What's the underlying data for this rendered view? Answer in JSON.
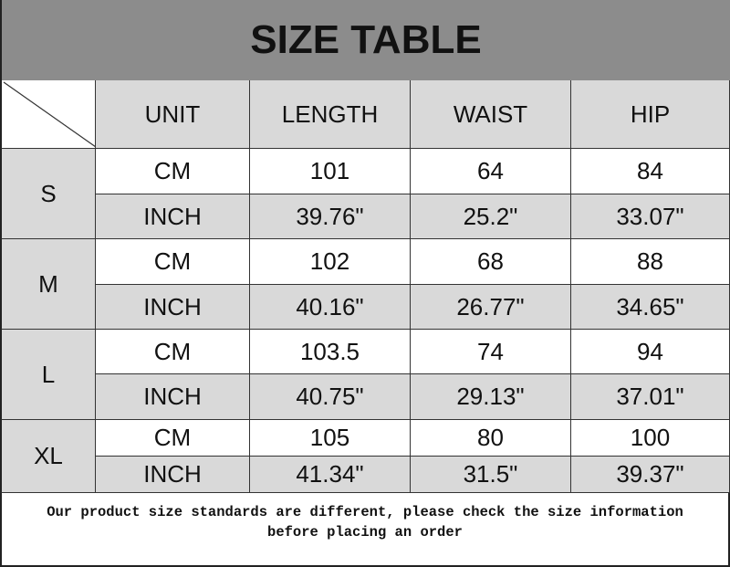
{
  "title": "SIZE TABLE",
  "headers": [
    "UNIT",
    "LENGTH",
    "WAIST",
    "HIP"
  ],
  "rows": [
    {
      "size": "S",
      "cm": {
        "unit": "CM",
        "values": [
          "101",
          "64",
          "84"
        ]
      },
      "inch": {
        "unit": "INCH",
        "values": [
          "39.76\"",
          "25.2\"",
          "33.07\""
        ]
      }
    },
    {
      "size": "M",
      "cm": {
        "unit": "CM",
        "values": [
          "102",
          "68",
          "88"
        ]
      },
      "inch": {
        "unit": "INCH",
        "values": [
          "40.16\"",
          "26.77\"",
          "34.65\""
        ]
      }
    },
    {
      "size": "L",
      "cm": {
        "unit": "CM",
        "values": [
          "103.5",
          "74",
          "94"
        ]
      },
      "inch": {
        "unit": "INCH",
        "values": [
          "40.75\"",
          "29.13\"",
          "37.01\""
        ]
      }
    },
    {
      "size": "XL",
      "cm": {
        "unit": "CM",
        "values": [
          "105",
          "80",
          "100"
        ]
      },
      "inch": {
        "unit": "INCH",
        "values": [
          "41.34\"",
          "31.5\"",
          "39.37\""
        ]
      }
    }
  ],
  "footer": {
    "line1": "Our product size standards are different, please check the size information",
    "line2": "before placing an order"
  },
  "colors": {
    "title_bg": "#8c8c8c",
    "cell_gray": "#d9d9d9"
  }
}
